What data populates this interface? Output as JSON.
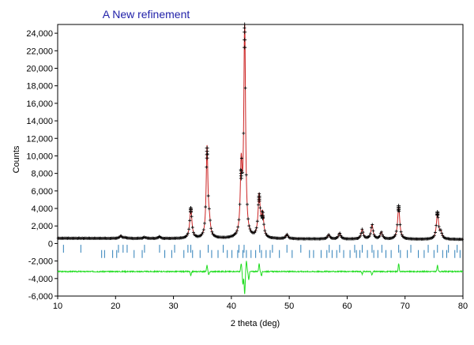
{
  "chart_data": {
    "type": "line",
    "title": "A New refinement",
    "xlabel": "2 theta (deg)",
    "ylabel": "Counts",
    "xlim": [
      10,
      80
    ],
    "ylim": [
      -6000,
      25000
    ],
    "x_ticks": [
      10,
      20,
      30,
      40,
      50,
      60,
      70,
      80
    ],
    "x_tick_labels": [
      "10",
      "20",
      "30",
      "40",
      "50",
      "60",
      "70",
      "80"
    ],
    "y_ticks": [
      -6000,
      -4000,
      -2000,
      0,
      2000,
      4000,
      6000,
      8000,
      10000,
      12000,
      14000,
      16000,
      18000,
      20000,
      22000,
      24000
    ],
    "y_tick_labels": [
      "-6,000",
      "-4,000",
      "-2,000",
      "0",
      "2,000",
      "4,000",
      "6,000",
      "8,000",
      "10,000",
      "12,000",
      "14,000",
      "16,000",
      "18,000",
      "20,000",
      "22,000",
      "24,000"
    ],
    "grid": false,
    "background_level": 600,
    "peaks": [
      {
        "x": 20.9,
        "y": 900
      },
      {
        "x": 21.6,
        "y": 700
      },
      {
        "x": 25.0,
        "y": 750
      },
      {
        "x": 27.6,
        "y": 800
      },
      {
        "x": 33.0,
        "y": 4000
      },
      {
        "x": 35.8,
        "y": 10900
      },
      {
        "x": 36.2,
        "y": 2000
      },
      {
        "x": 41.7,
        "y": 8300
      },
      {
        "x": 42.3,
        "y": 25000
      },
      {
        "x": 44.8,
        "y": 5400
      },
      {
        "x": 45.4,
        "y": 3200
      },
      {
        "x": 49.6,
        "y": 1100
      },
      {
        "x": 56.8,
        "y": 1100
      },
      {
        "x": 58.7,
        "y": 1300
      },
      {
        "x": 62.6,
        "y": 1700
      },
      {
        "x": 64.3,
        "y": 2200
      },
      {
        "x": 65.9,
        "y": 1400
      },
      {
        "x": 68.9,
        "y": 4300
      },
      {
        "x": 75.6,
        "y": 3600
      },
      {
        "x": 76.2,
        "y": 1300
      }
    ],
    "reflection_markers": {
      "row1_y": -600,
      "row2_y": -1200,
      "row1_positions": [
        11.0,
        14.0,
        20.5,
        21.3,
        22.0,
        25.0,
        27.6,
        30.2,
        32.5,
        33.0,
        36.0,
        38.6,
        41.3,
        42.2,
        44.9,
        47.1,
        49.6,
        52.0,
        56.9,
        58.7,
        61.3,
        62.6,
        64.3,
        66.0,
        68.9,
        71.0,
        74.0,
        75.6,
        77.5,
        79.0
      ],
      "row2_positions": [
        17.6,
        18.1,
        19.5,
        20.2,
        23.2,
        24.6,
        28.5,
        29.7,
        31.8,
        33.3,
        34.6,
        36.6,
        37.7,
        39.3,
        40.1,
        41.1,
        42.0,
        42.6,
        43.4,
        44.2,
        45.2,
        46.0,
        46.7,
        48.3,
        50.5,
        53.5,
        54.2,
        55.5,
        56.5,
        57.4,
        58.2,
        59.4,
        60.5,
        61.6,
        62.2,
        63.5,
        64.6,
        65.3,
        66.7,
        67.6,
        69.2,
        70.4,
        72.3,
        73.3,
        75.0,
        76.5,
        77.2,
        78.6,
        79.5
      ],
      "color": "#2e7fb8"
    },
    "difference_curve": {
      "offset": -3200,
      "features": [
        {
          "x": 33.0,
          "dy": -500
        },
        {
          "x": 35.8,
          "dy": 700
        },
        {
          "x": 36.1,
          "dy": -400
        },
        {
          "x": 41.7,
          "dy": 900
        },
        {
          "x": 42.0,
          "dy": -1500
        },
        {
          "x": 42.3,
          "dy": -2600
        },
        {
          "x": 42.6,
          "dy": 1200
        },
        {
          "x": 43.0,
          "dy": -900
        },
        {
          "x": 44.8,
          "dy": 900
        },
        {
          "x": 45.2,
          "dy": -500
        },
        {
          "x": 62.6,
          "dy": -300
        },
        {
          "x": 64.3,
          "dy": -400
        },
        {
          "x": 68.9,
          "dy": 900
        },
        {
          "x": 75.6,
          "dy": 700
        }
      ],
      "color": "#22dd22"
    },
    "series": [
      {
        "style": "observed",
        "color": "#000000",
        "marker": "+"
      },
      {
        "style": "calculated",
        "color": "#cc2222"
      }
    ]
  }
}
